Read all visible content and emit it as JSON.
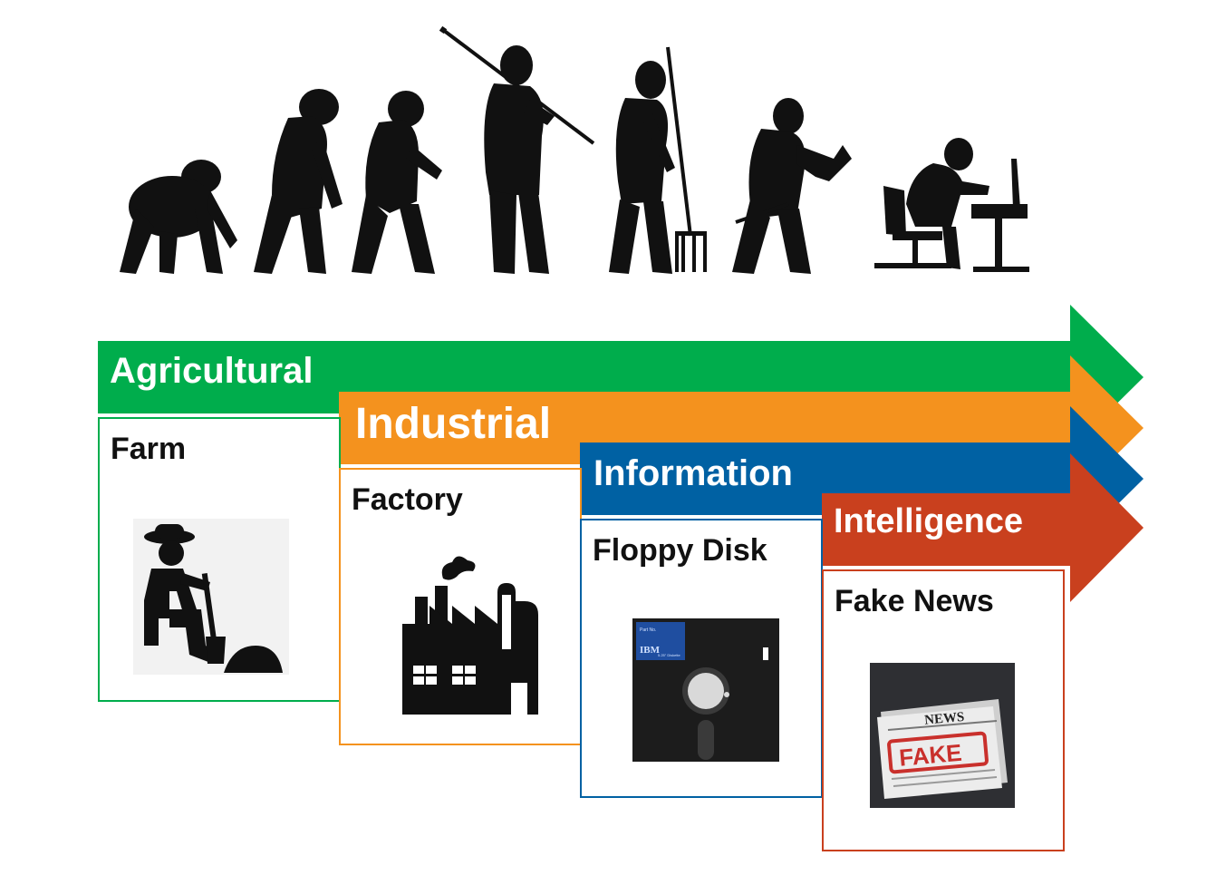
{
  "colors": {
    "agricultural": "#00ad4c",
    "industrial": "#f4921e",
    "information": "#0061a3",
    "intelligence": "#c9401e",
    "silhouette": "#111111"
  },
  "eras": [
    {
      "label": "Agricultural",
      "box_title": "Farm",
      "icon": "farmer-digging-icon"
    },
    {
      "label": "Industrial",
      "box_title": "Factory",
      "icon": "factory-icon"
    },
    {
      "label": "Information",
      "box_title": "Floppy Disk",
      "icon": "floppy-disk-icon"
    },
    {
      "label": "Intelligence",
      "box_title": "Fake News",
      "icon": "fake-news-newspaper-icon"
    }
  ],
  "floppy": {
    "brand": "IBM",
    "part_no": "Part No.",
    "size": "5.25\" Diskette"
  },
  "newspaper": {
    "headline": "NEWS",
    "stamp": "FAKE"
  },
  "evolution_stages": [
    "ape-silhouette",
    "early-hominid-silhouette",
    "hominid-silhouette",
    "hunter-with-spear-silhouette",
    "farmer-with-pitchfork-silhouette",
    "worker-with-drill-silhouette",
    "office-worker-at-computer-silhouette"
  ]
}
